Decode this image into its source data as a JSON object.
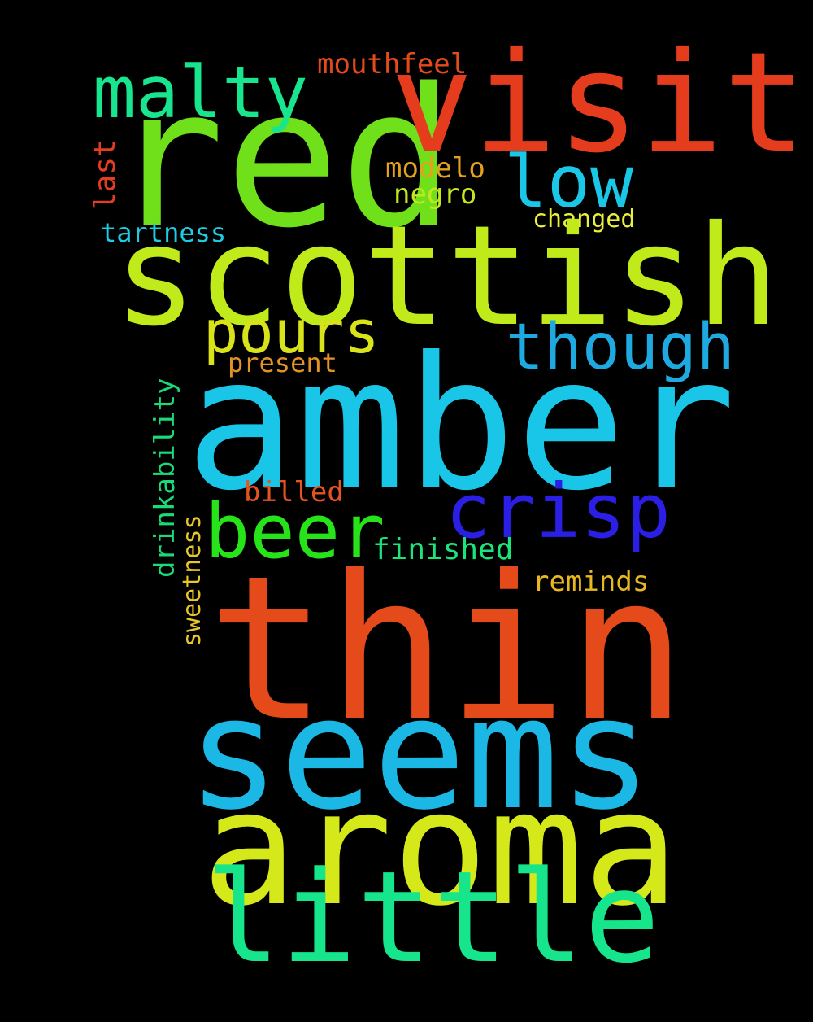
{
  "words": {
    "red": {
      "text": "red",
      "color": "#6fe01a"
    },
    "visit": {
      "text": "visit",
      "color": "#e63c1e"
    },
    "malty": {
      "text": "malty",
      "color": "#18e58e"
    },
    "mouthfeel": {
      "text": "mouthfeel",
      "color": "#e34b1d"
    },
    "low": {
      "text": "low",
      "color": "#1bc7e6"
    },
    "modelo": {
      "text": "modelo",
      "color": "#e3a11e"
    },
    "negro": {
      "text": "negro",
      "color": "#c2e71e"
    },
    "changed": {
      "text": "changed",
      "color": "#e8ef3d"
    },
    "tartness": {
      "text": "tartness",
      "color": "#1fcbe4"
    },
    "last": {
      "text": "last",
      "color": "#e33d23"
    },
    "scottish": {
      "text": "scottish",
      "color": "#c0ea19"
    },
    "pours": {
      "text": "pours",
      "color": "#d8e31a"
    },
    "though": {
      "text": "though",
      "color": "#1ea9e1"
    },
    "present": {
      "text": "present",
      "color": "#e39225"
    },
    "amber": {
      "text": "amber",
      "color": "#1ac6e8"
    },
    "drinkability": {
      "text": "drinkability",
      "color": "#19dc78"
    },
    "billed": {
      "text": "billed",
      "color": "#e5541f"
    },
    "crisp": {
      "text": "crisp",
      "color": "#2b1fe6"
    },
    "beer": {
      "text": "beer",
      "color": "#27e31a"
    },
    "finished": {
      "text": "finished",
      "color": "#19e57b"
    },
    "sweetness": {
      "text": "sweetness",
      "color": "#e8c72a"
    },
    "reminds": {
      "text": "reminds",
      "color": "#e8b823"
    },
    "thin": {
      "text": "thin",
      "color": "#e54a1b"
    },
    "seems": {
      "text": "seems",
      "color": "#1cb8e5"
    },
    "aroma": {
      "text": "aroma",
      "color": "#d5e81a"
    },
    "little": {
      "text": "little",
      "color": "#17e58c"
    }
  }
}
